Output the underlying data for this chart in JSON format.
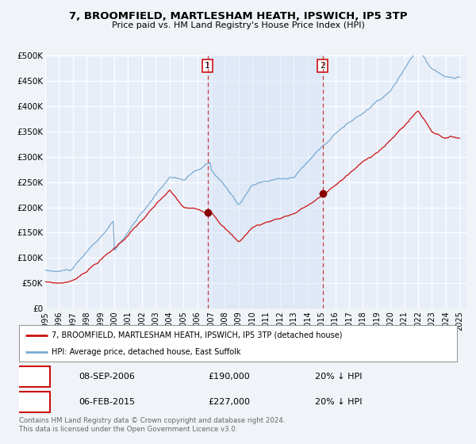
{
  "title": "7, BROOMFIELD, MARTLESHAM HEATH, IPSWICH, IP5 3TP",
  "subtitle": "Price paid vs. HM Land Registry's House Price Index (HPI)",
  "background_color": "#f0f4f8",
  "plot_bg_color": "#e8eef8",
  "grid_color": "#c8d4e8",
  "shade_color": "#ccddf5",
  "sale1_date": 2006.75,
  "sale1_price": 190000,
  "sale1_label": "1",
  "sale2_date": 2015.09,
  "sale2_price": 227000,
  "sale2_label": "2",
  "xmin": 1995,
  "xmax": 2025.5,
  "ymin": 0,
  "ymax": 500000,
  "yticks": [
    0,
    50000,
    100000,
    150000,
    200000,
    250000,
    300000,
    350000,
    400000,
    450000,
    500000
  ],
  "ytick_labels": [
    "£0",
    "£50K",
    "£100K",
    "£150K",
    "£200K",
    "£250K",
    "£300K",
    "£350K",
    "£400K",
    "£450K",
    "£500K"
  ],
  "legend_line1": "7, BROOMFIELD, MARTLESHAM HEATH, IPSWICH, IP5 3TP (detached house)",
  "legend_line2": "HPI: Average price, detached house, East Suffolk",
  "annotation1_date": "08-SEP-2006",
  "annotation1_price": "£190,000",
  "annotation1_pct": "20% ↓ HPI",
  "annotation2_date": "06-FEB-2015",
  "annotation2_price": "£227,000",
  "annotation2_pct": "20% ↓ HPI",
  "footer": "Contains HM Land Registry data © Crown copyright and database right 2024.\nThis data is licensed under the Open Government Licence v3.0.",
  "hpi_color": "#7aaad0",
  "price_color": "#cc1111",
  "sale_marker_color": "#880000"
}
